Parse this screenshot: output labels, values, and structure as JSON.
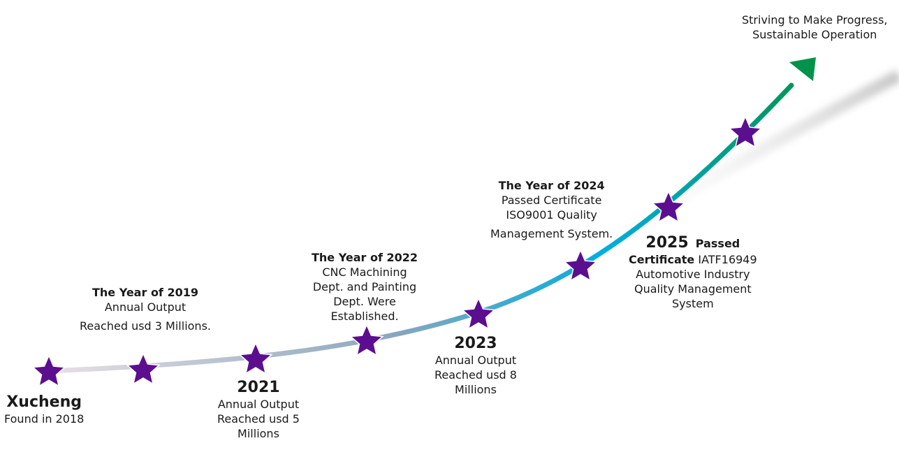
{
  "colors": {
    "star": "#5b0f8f",
    "arrow_start": "#e8e0e4",
    "arrow_mid": "#00aee0",
    "arrow_end": "#00934a",
    "shadow": "#c8c8c8"
  },
  "goal": {
    "line1": "Striving to Make Progress,",
    "line2": "Sustainable Operation"
  },
  "milestones": [
    {
      "title": "Xucheng",
      "lines": [
        "Found in 2018"
      ]
    },
    {
      "title": "The Year of 2019",
      "lines": [
        "Annual Output",
        "Reached usd 3 Millions."
      ]
    },
    {
      "title": "2021",
      "lines": [
        "Annual Output",
        "Reached usd 5",
        "Millions"
      ]
    },
    {
      "title": "The Year of 2022",
      "lines": [
        "CNC Machining",
        "Dept. and Painting",
        "Dept. Were",
        "Established."
      ]
    },
    {
      "title": "2023",
      "lines": [
        "Annual Output",
        "Reached usd 8",
        "Millions"
      ]
    },
    {
      "title": "The Year of 2024",
      "lines": [
        "Passed Certificate",
        "ISO9001 Quality",
        "Management System."
      ]
    },
    {
      "title": "2025",
      "title_suffix": "Passed",
      "title2": "Certificate",
      "lines": [
        "IATF16949",
        "Automotive Industry",
        "Quality Management",
        "System"
      ]
    }
  ]
}
